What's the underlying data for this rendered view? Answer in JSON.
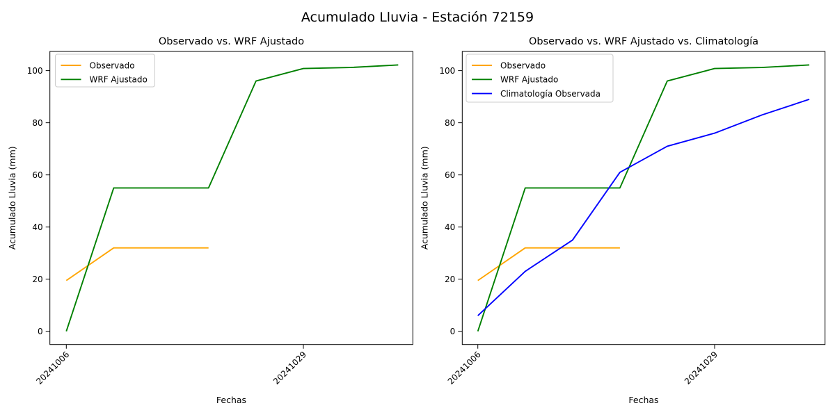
{
  "figure_title": "Acumulado Lluvia - Estación 72159",
  "colors": {
    "background": "#ffffff",
    "axes": "#000000",
    "text": "#000000",
    "legend_border": "#cccccc",
    "observado": "#FFA500",
    "wrf_ajustado": "#008000",
    "climatologia": "#0000FF"
  },
  "chart_data": [
    {
      "type": "line",
      "title": "Observado vs. WRF Ajustado",
      "xlabel": "Fechas",
      "ylabel": "Acumulado Lluvia (mm)",
      "n_points": 8,
      "x": [
        0,
        1,
        2,
        3,
        4,
        5,
        6,
        7
      ],
      "xticks": {
        "positions": [
          0,
          5
        ],
        "labels": [
          "20241006",
          "20241029"
        ],
        "rotation": 45
      },
      "yticks": [
        0,
        20,
        40,
        60,
        80,
        100
      ],
      "ylim": [
        -5,
        107
      ],
      "grid": false,
      "legend_position": "upper left",
      "series": [
        {
          "name": "Observado",
          "color": "#FFA500",
          "values": [
            19.5,
            32,
            32,
            32,
            null,
            null,
            null,
            null
          ]
        },
        {
          "name": "WRF Ajustado",
          "color": "#008000",
          "values": [
            0,
            55,
            55,
            55,
            96,
            100.8,
            101.2,
            102.2
          ]
        }
      ]
    },
    {
      "type": "line",
      "title": "Observado vs. WRF Ajustado vs. Climatología",
      "xlabel": "Fechas",
      "ylabel": "Acumulado Lluvia (mm)",
      "n_points": 8,
      "x": [
        0,
        1,
        2,
        3,
        4,
        5,
        6,
        7
      ],
      "xticks": {
        "positions": [
          0,
          5
        ],
        "labels": [
          "20241006",
          "20241029"
        ],
        "rotation": 45
      },
      "yticks": [
        0,
        20,
        40,
        60,
        80,
        100
      ],
      "ylim": [
        -5,
        107
      ],
      "grid": false,
      "legend_position": "upper left",
      "series": [
        {
          "name": "Observado",
          "color": "#FFA500",
          "values": [
            19.5,
            32,
            32,
            32,
            null,
            null,
            null,
            null
          ]
        },
        {
          "name": "WRF Ajustado",
          "color": "#008000",
          "values": [
            0,
            55,
            55,
            55,
            96,
            100.8,
            101.2,
            102.2
          ]
        },
        {
          "name": "Climatología Observada",
          "color": "#0000FF",
          "values": [
            6,
            23,
            35,
            61,
            71,
            76,
            83,
            89
          ]
        }
      ]
    }
  ]
}
